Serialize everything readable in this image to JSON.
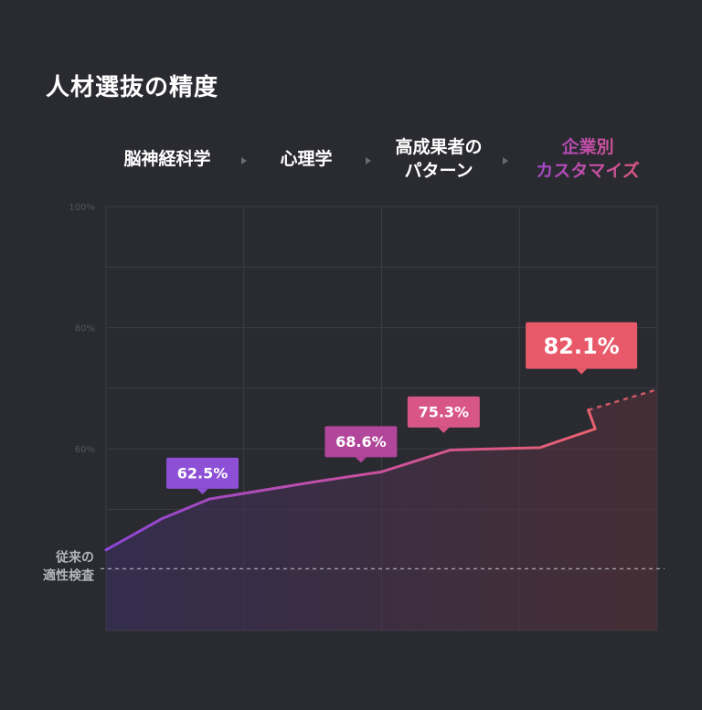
{
  "title": "人材選抜の精度",
  "stages": [
    {
      "lines": [
        "脳神経科学"
      ]
    },
    {
      "lines": [
        "心理学"
      ]
    },
    {
      "lines": [
        "高成果者の",
        "パターン"
      ]
    },
    {
      "lines": [
        "企業別",
        "カスタマイズ"
      ],
      "highlight": true
    }
  ],
  "colors": {
    "background": "#2a2a31",
    "gradient_start": "#8d46d8",
    "gradient_mid": "#c64fa3",
    "gradient_end": "#e8606e",
    "grid": "#3c3c45",
    "reference_line": "#a5a5ae"
  },
  "chart_data": {
    "type": "line",
    "ylim": [
      30,
      100
    ],
    "yticks": [
      {
        "value": 100,
        "label": "100%"
      },
      {
        "value": 80,
        "label": "80%"
      },
      {
        "value": 60,
        "label": "60%"
      }
    ],
    "grid": true,
    "series": [
      {
        "values": [
          {
            "x": 0.0,
            "y": 43.3
          },
          {
            "x": 0.4,
            "y": 48.4
          },
          {
            "x": 0.75,
            "y": 51.7
          },
          {
            "x": 1.5,
            "y": 54.5
          },
          {
            "x": 2.0,
            "y": 56.2
          },
          {
            "x": 2.5,
            "y": 59.8
          },
          {
            "x": 3.15,
            "y": 60.2
          },
          {
            "x": 3.55,
            "y": 63.3
          },
          {
            "x": 3.5,
            "y": 66.4
          }
        ]
      }
    ],
    "projection": [
      {
        "x": 3.5,
        "y": 66.4
      },
      {
        "x": 4.0,
        "y": 69.8
      }
    ],
    "callouts": [
      {
        "label": "62.5%",
        "x": 0.7,
        "y": 52.5,
        "size": "small",
        "color": "#8d4fd6"
      },
      {
        "label": "68.6%",
        "x": 1.85,
        "y": 57.7,
        "size": "small",
        "color": "#b1469a"
      },
      {
        "label": "75.3%",
        "x": 2.45,
        "y": 62.6,
        "size": "small",
        "color": "#d85685"
      },
      {
        "label": "82.1%",
        "x": 3.45,
        "y": 72.3,
        "size": "large",
        "color": "#e8596a"
      }
    ],
    "reference": {
      "label_lines": [
        "従来の",
        "適性検査"
      ],
      "y": 40.2
    }
  }
}
